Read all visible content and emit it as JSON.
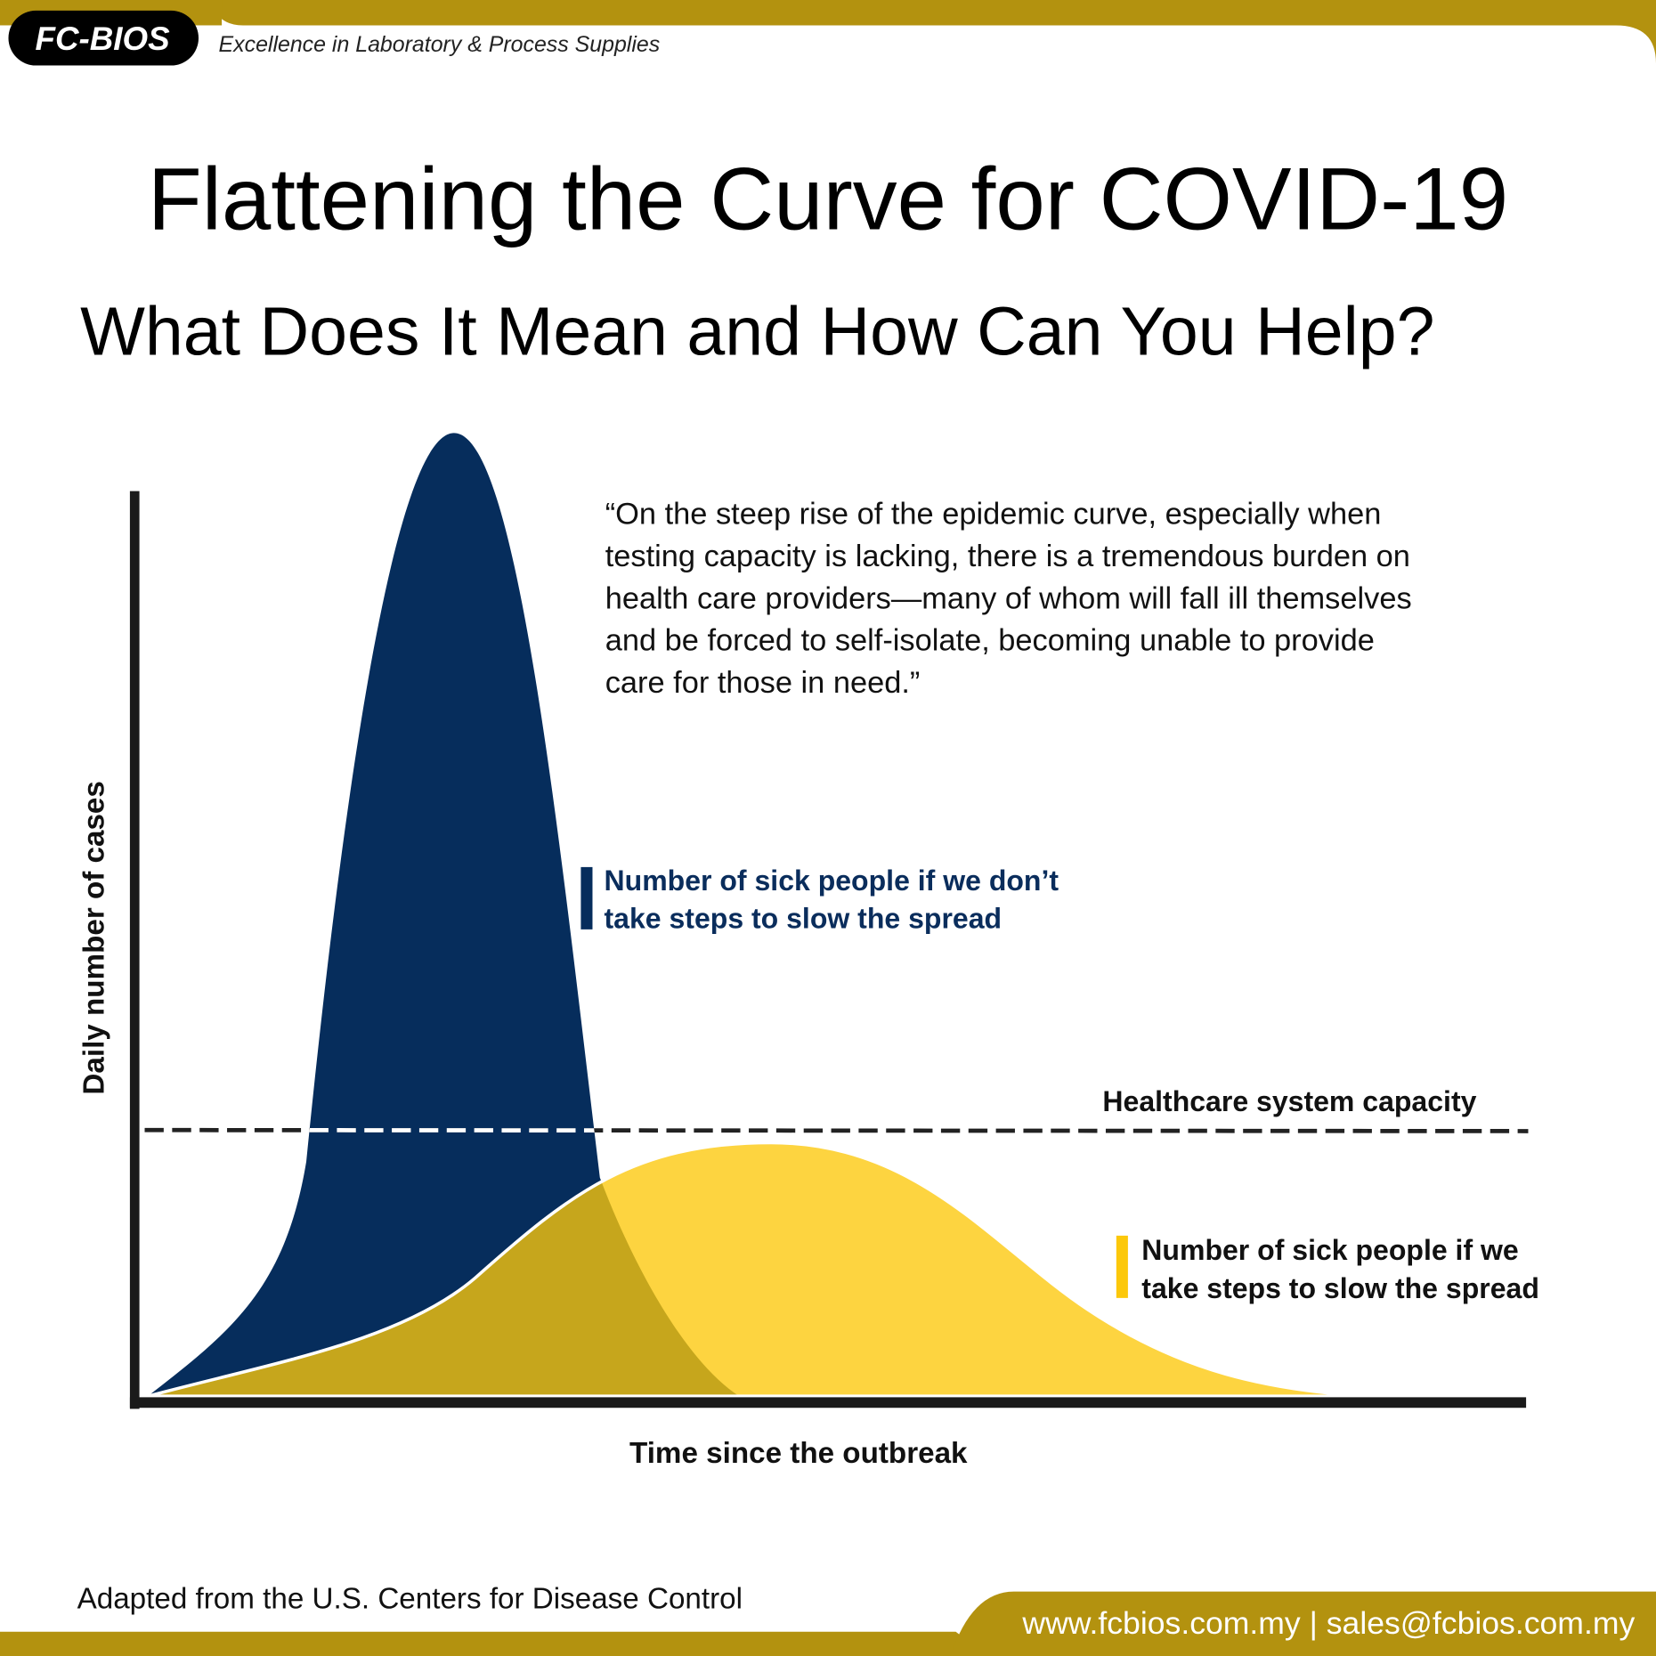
{
  "header": {
    "logo": "FC-BIOS",
    "tagline": "Excellence in Laboratory & Process Supplies"
  },
  "title": "Flattening the Curve for COVID-19",
  "subtitle": "What Does It Mean and How Can You Help?",
  "quote": [
    "“On the steep rise of the epidemic curve, especially when",
    "testing capacity is lacking, there is a tremendous burden on",
    "health care providers—many of whom will fall ill themselves",
    "and be forced to self-isolate, becoming unable to provide",
    "care for those in need.”"
  ],
  "labels": {
    "no_action": [
      "Number of sick people if we don’t",
      "take steps to slow the spread"
    ],
    "action": [
      "Number of sick people if we",
      "take steps to slow the spread"
    ],
    "capacity": "Healthcare system capacity",
    "y_axis": "Daily number of cases",
    "x_axis": "Time since the outbreak"
  },
  "footer": {
    "source": "Adapted from the U.S. Centers for Disease Control",
    "contact": "www.fcbios.com.my | sales@fcbios.com.my"
  }
}
